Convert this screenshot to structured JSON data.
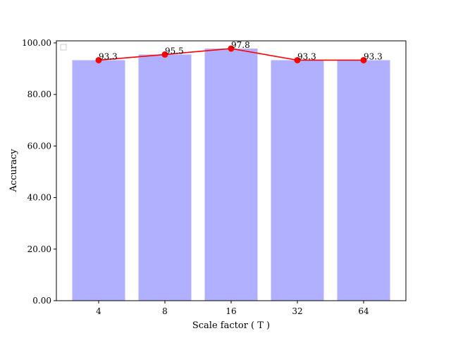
{
  "chart_data": {
    "type": "bar",
    "categories": [
      "4",
      "8",
      "16",
      "32",
      "64"
    ],
    "series": [
      {
        "type": "bar",
        "values": [
          93.3,
          95.5,
          97.8,
          93.3,
          93.3
        ],
        "color": "#b0b0ff"
      },
      {
        "type": "line",
        "values": [
          93.3,
          95.5,
          97.8,
          93.3,
          93.3
        ],
        "color": "#ff0000",
        "marker": "circle"
      }
    ],
    "data_labels": [
      "93.3",
      "95.5",
      "97.8",
      "93.3",
      "93.3"
    ],
    "xlabel": "Scale factor ( T )",
    "ylabel": "Accuracy",
    "ylim": [
      0,
      100
    ],
    "yticks": [
      0,
      20,
      40,
      60,
      80,
      100
    ],
    "ytick_labels": [
      "0.00",
      "20.00",
      "40.00",
      "60.00",
      "80.00",
      "100.00"
    ],
    "grid": false,
    "legend": {
      "placement": "top-left",
      "entries": []
    }
  }
}
